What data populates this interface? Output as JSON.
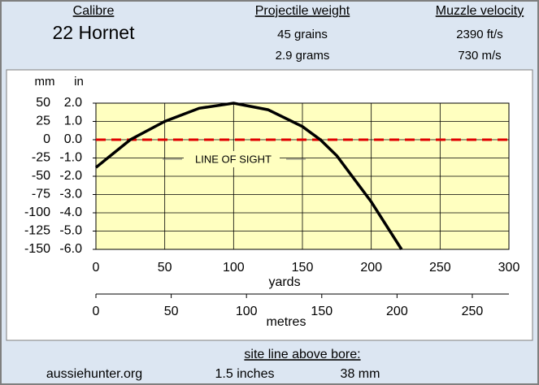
{
  "header": {
    "calibre_label": "Calibre",
    "calibre": "22 Hornet",
    "weight_label": "Projectile weight",
    "weight_grains": "45 grains",
    "weight_grams": "2.9 grams",
    "velocity_label": "Muzzle velocity",
    "velocity_fps": "2390 ft/s",
    "velocity_ms": "730 m/s"
  },
  "chart_data": {
    "type": "line",
    "x": [
      0,
      25,
      50,
      75,
      100,
      125,
      150,
      163,
      175,
      200,
      222
    ],
    "values": [
      -38,
      0,
      25,
      43,
      50,
      41,
      18,
      0,
      -22,
      -85,
      -150
    ],
    "color": "#000000",
    "xlabel": "yards",
    "xlim": [
      0,
      300
    ],
    "xticks": [
      0,
      50,
      100,
      150,
      200,
      250,
      300
    ],
    "ylabel": "mm",
    "ylim": [
      -150,
      50
    ],
    "yticks": [
      50,
      25,
      0,
      -25,
      -50,
      -75,
      -100,
      -125,
      -150
    ],
    "y2label": "in",
    "y2lim": [
      -6,
      2
    ],
    "y2ticks": [
      {
        "value": 2,
        "label": "2.0"
      },
      {
        "value": 1,
        "label": "1.0"
      },
      {
        "value": 0,
        "label": "0.0"
      },
      {
        "value": -1,
        "label": "-1.0"
      },
      {
        "value": -2,
        "label": "-2.0"
      },
      {
        "value": -3,
        "label": "-3.0"
      },
      {
        "value": -4,
        "label": "-4.0"
      },
      {
        "value": -5,
        "label": "-5.0"
      },
      {
        "value": -6,
        "label": "-6.0"
      }
    ],
    "x2label": "metres",
    "x2lim": [
      0,
      274.32
    ],
    "x2ticks": [
      0,
      50,
      100,
      150,
      200,
      250
    ],
    "line_of_sight": {
      "label": "LINE OF SIGHT",
      "value": 0,
      "color": "#e00000"
    },
    "grid": true,
    "plot_background": "#ffffc0"
  },
  "footer": {
    "sight_label": "site line above bore:",
    "website": "aussiehunter.org",
    "sight_inches": "1.5 inches",
    "sight_mm": "38 mm"
  }
}
